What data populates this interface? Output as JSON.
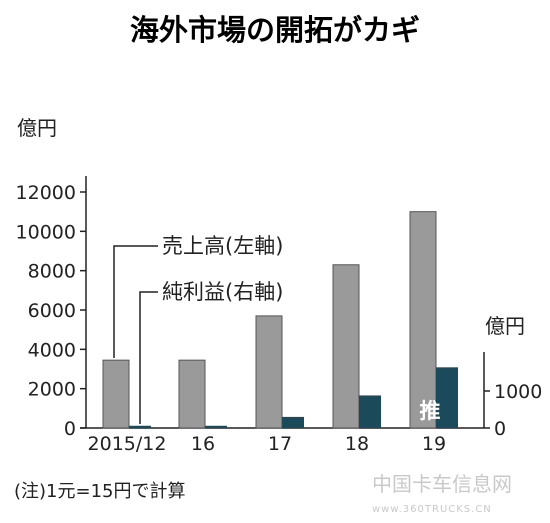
{
  "title": "海外市場の開拓がカギ",
  "chart_data": {
    "type": "bar",
    "categories": [
      "2015/12",
      "16",
      "17",
      "18",
      "19"
    ],
    "series": [
      {
        "name": "売上高(左軸)",
        "axis": "left",
        "color": "#9a9a9a",
        "values": [
          3450,
          3450,
          5700,
          8300,
          11000
        ]
      },
      {
        "name": "純利益(右軸)",
        "axis": "right",
        "color": "#1b4a5a",
        "values": [
          60,
          60,
          300,
          880,
          1640
        ]
      }
    ],
    "left_axis": {
      "unit": "億円",
      "ylim": [
        0,
        13000
      ],
      "ticks": [
        "0",
        "2000",
        "4000",
        "6000",
        "8000",
        "10000",
        "12000"
      ]
    },
    "right_axis": {
      "unit": "億円",
      "ylim": [
        0,
        2000
      ],
      "ticks": [
        "0",
        "1000"
      ]
    },
    "estimate_label": "推",
    "note": "(注)1元=15円で計算",
    "grid": false
  },
  "watermark": {
    "text": "中国卡车信息网",
    "url": "www.360TRUCKS.CN"
  },
  "colors": {
    "sales": "#9a9a9a",
    "profit": "#1b4a5a",
    "axis": "#222222"
  }
}
